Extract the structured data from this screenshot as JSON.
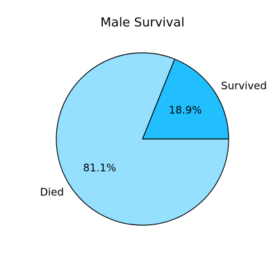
{
  "chart_data": {
    "type": "pie",
    "title": "Male Survival",
    "slices": [
      {
        "label": "Survived",
        "value": 18.9,
        "pct_label": "18.9%",
        "color": "#22bfff"
      },
      {
        "label": "Died",
        "value": 81.1,
        "pct_label": "81.1%",
        "color": "#95e0ff"
      }
    ],
    "start_angle_deg": 0,
    "direction": "counterclockwise",
    "edge_color": "#000000"
  }
}
